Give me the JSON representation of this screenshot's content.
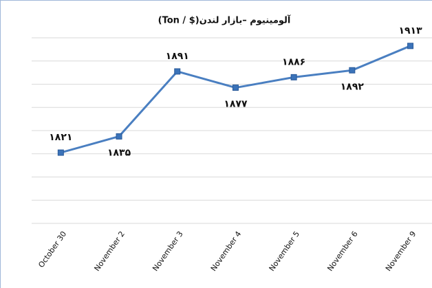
{
  "chart_data": {
    "type": "line",
    "title": "آلومینیوم –بازار لندن($ / Ton)",
    "categories": [
      "October 30",
      "November 2",
      "November 3",
      "November 4",
      "November 5",
      "November 6",
      "November 9"
    ],
    "series": [
      {
        "name": "آلومینیوم",
        "color": "#4a7fc1",
        "values": [
          1821,
          1835,
          1891,
          1877,
          1886,
          1892,
          1913
        ],
        "value_labels": [
          "۱۸۲۱",
          "۱۸۳۵",
          "۱۸۹۱",
          "۱۸۷۷",
          "۱۸۸۶",
          "۱۸۹۲",
          "۱۹۱۳"
        ]
      }
    ],
    "ylim": [
      1760,
      1920
    ],
    "yticks": [
      1760,
      1780,
      1800,
      1820,
      1840,
      1860,
      1880,
      1900,
      1920
    ],
    "grid": true
  }
}
